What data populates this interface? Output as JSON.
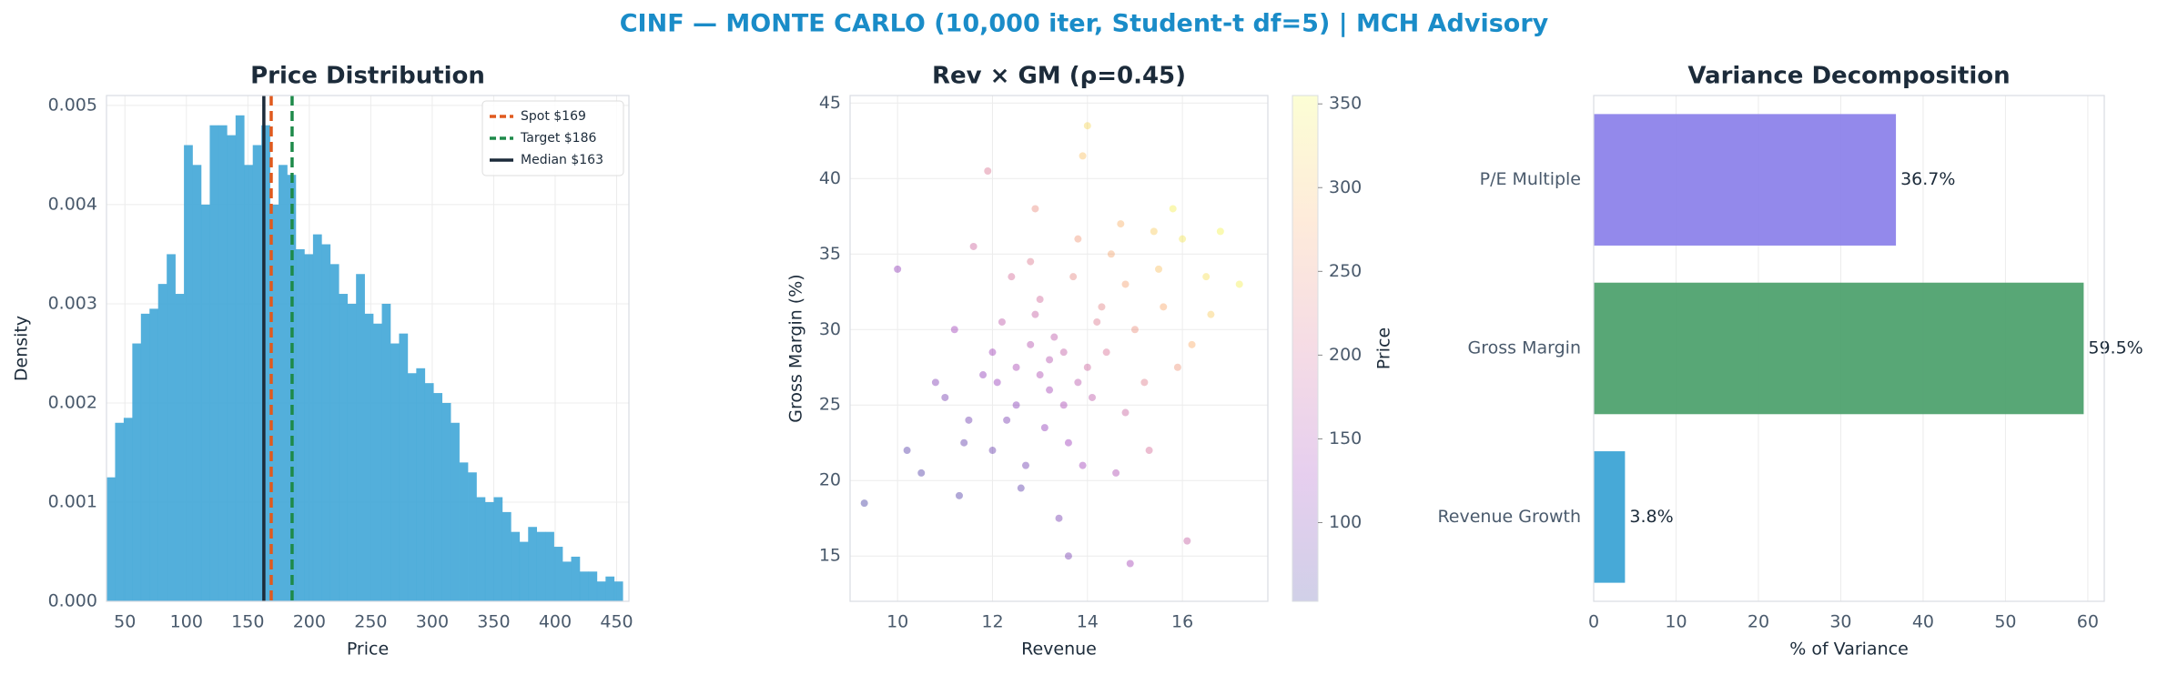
{
  "title": "CINF — MONTE CARLO (10,000 iter, Student-t df=5) | MCH Advisory",
  "chart_data": [
    {
      "type": "histogram",
      "title": "Price Distribution",
      "xlabel": "Price",
      "ylabel": "Density",
      "color": "#4aabd9",
      "bins": [
        35,
        42,
        49,
        56,
        63,
        70,
        77,
        84,
        91,
        98,
        105,
        112,
        119,
        126,
        133,
        140,
        147,
        154,
        161,
        168,
        175,
        182,
        189,
        196,
        203,
        210,
        217,
        224,
        231,
        238,
        245,
        252,
        259,
        266,
        273,
        280,
        287,
        294,
        301,
        308,
        315,
        322,
        329,
        336,
        343,
        350,
        357,
        364,
        371,
        378,
        385,
        392,
        399,
        406,
        413,
        420,
        427,
        434,
        441,
        448,
        455
      ],
      "values": [
        0.00125,
        0.0018,
        0.00185,
        0.0026,
        0.0029,
        0.00295,
        0.0032,
        0.0035,
        0.0031,
        0.0046,
        0.0044,
        0.004,
        0.0048,
        0.0048,
        0.0047,
        0.0049,
        0.0044,
        0.0046,
        0.0048,
        0.004,
        0.0044,
        0.0043,
        0.00355,
        0.0035,
        0.0037,
        0.0036,
        0.0034,
        0.0031,
        0.003,
        0.0033,
        0.0029,
        0.0028,
        0.003,
        0.0026,
        0.0027,
        0.0023,
        0.00235,
        0.0022,
        0.0021,
        0.002,
        0.0018,
        0.0014,
        0.0013,
        0.00105,
        0.001,
        0.00105,
        0.0009,
        0.0007,
        0.0006,
        0.00075,
        0.0007,
        0.0007,
        0.00055,
        0.0004,
        0.00045,
        0.0003,
        0.0003,
        0.0002,
        0.00025,
        0.0002
      ],
      "xlim": [
        35,
        460
      ],
      "ylim": [
        0,
        0.0051
      ],
      "xticks": [
        50,
        100,
        150,
        200,
        250,
        300,
        350,
        400,
        450
      ],
      "yticks": [
        {
          "value": 0,
          "label": "0.000"
        },
        {
          "value": 0.001,
          "label": "0.001"
        },
        {
          "value": 0.002,
          "label": "0.002"
        },
        {
          "value": 0.003,
          "label": "0.003"
        },
        {
          "value": 0.004,
          "label": "0.004"
        },
        {
          "value": 0.005,
          "label": "0.005"
        }
      ],
      "reference_lines": [
        {
          "name": "Spot $169",
          "value": 169,
          "color": "#e05a1e",
          "style": "dashed"
        },
        {
          "name": "Target $186",
          "value": 186,
          "color": "#1e8a4a",
          "style": "dashed"
        },
        {
          "name": "Median $163",
          "value": 163,
          "color": "#1c2b3a",
          "style": "solid"
        }
      ],
      "legend": "upper right",
      "grid": true
    },
    {
      "type": "scatter",
      "title": "Rev × GM (ρ=0.45)",
      "xlabel": "Revenue",
      "ylabel": "Gross Margin (%)",
      "alpha": 0.35,
      "x": [
        13.0,
        12.5,
        13.5,
        14.2,
        12.0,
        11.5,
        14.8,
        15.5,
        16.0,
        13.2,
        12.8,
        14.0,
        11.8,
        10.5,
        13.6,
        15.0,
        12.2,
        14.5,
        13.0,
        11.0,
        12.6,
        14.8,
        16.5,
        15.8,
        13.8,
        12.4,
        10.2,
        11.2,
        13.4,
        14.6,
        15.2,
        16.2,
        17.2,
        13.9,
        12.9,
        11.6,
        9.3,
        10.8,
        12.1,
        13.3,
        14.3,
        13.1,
        12.3,
        14.1,
        15.6,
        16.8,
        13.7,
        12.7,
        11.4,
        14.4,
        15.4,
        13.5,
        12.9,
        16.1,
        14.9,
        10.0,
        11.9,
        14.0,
        13.6,
        15.9,
        12.5,
        13.8,
        13.2,
        12.0,
        14.7,
        11.3,
        15.3,
        12.8,
        13.9,
        16.6
      ],
      "y": [
        27.0,
        25.0,
        28.5,
        30.5,
        22.0,
        24.0,
        33.0,
        34.0,
        36.0,
        26.0,
        29.0,
        27.5,
        27.0,
        20.5,
        22.5,
        30.0,
        30.5,
        35.0,
        32.0,
        25.5,
        19.5,
        24.5,
        33.5,
        38.0,
        36.0,
        33.5,
        22.0,
        30.0,
        17.5,
        20.5,
        26.5,
        29.0,
        33.0,
        41.5,
        38.0,
        35.5,
        18.5,
        26.5,
        26.5,
        29.5,
        31.5,
        23.5,
        24.0,
        25.5,
        31.5,
        36.5,
        33.5,
        21.0,
        22.5,
        28.5,
        36.5,
        25.0,
        31.0,
        16.0,
        14.5,
        34.0,
        40.5,
        43.5,
        15.0,
        27.5,
        27.5,
        26.5,
        28.0,
        28.5,
        37.0,
        19.0,
        22.0,
        34.5,
        21.0,
        31.0
      ],
      "color_values": [
        150,
        110,
        175,
        215,
        85,
        90,
        265,
        300,
        335,
        140,
        160,
        190,
        120,
        65,
        130,
        245,
        170,
        270,
        195,
        95,
        75,
        185,
        330,
        345,
        255,
        200,
        70,
        135,
        95,
        150,
        220,
        280,
        345,
        300,
        240,
        190,
        55,
        105,
        125,
        170,
        230,
        120,
        100,
        170,
        275,
        350,
        235,
        90,
        80,
        205,
        310,
        145,
        180,
        180,
        140,
        120,
        210,
        320,
        95,
        250,
        145,
        165,
        160,
        135,
        285,
        65,
        200,
        215,
        135,
        310
      ],
      "xlim": [
        9,
        17.8
      ],
      "ylim": [
        12,
        45.5
      ],
      "xticks": [
        10,
        12,
        14,
        16
      ],
      "yticks": [
        15,
        20,
        25,
        30,
        35,
        40,
        45
      ],
      "colorbar": {
        "label": "Price",
        "colormap": "plasma",
        "lim": [
          53,
          355
        ],
        "ticks": [
          100,
          150,
          200,
          250,
          300,
          350
        ]
      },
      "grid": true
    },
    {
      "type": "barh",
      "title": "Variance Decomposition",
      "xlabel": "% of Variance",
      "categories": [
        "P/E Multiple",
        "Gross Margin",
        "Revenue Growth"
      ],
      "values": [
        36.7,
        59.5,
        3.8
      ],
      "value_labels": [
        "36.7%",
        "59.5%",
        "3.8%"
      ],
      "colors": [
        "#8a7fe9",
        "#4aa06a",
        "#37a2d4"
      ],
      "xlim": [
        0,
        62
      ],
      "xticks": [
        0,
        10,
        20,
        30,
        40,
        50,
        60
      ],
      "grid": true
    }
  ]
}
